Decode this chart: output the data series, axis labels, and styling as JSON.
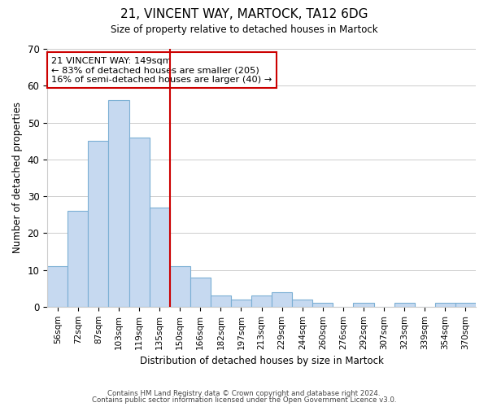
{
  "title": "21, VINCENT WAY, MARTOCK, TA12 6DG",
  "subtitle": "Size of property relative to detached houses in Martock",
  "xlabel": "Distribution of detached houses by size in Martock",
  "ylabel": "Number of detached properties",
  "bar_labels": [
    "56sqm",
    "72sqm",
    "87sqm",
    "103sqm",
    "119sqm",
    "135sqm",
    "150sqm",
    "166sqm",
    "182sqm",
    "197sqm",
    "213sqm",
    "229sqm",
    "244sqm",
    "260sqm",
    "276sqm",
    "292sqm",
    "307sqm",
    "323sqm",
    "339sqm",
    "354sqm",
    "370sqm"
  ],
  "bar_values": [
    11,
    26,
    45,
    56,
    46,
    27,
    11,
    8,
    3,
    2,
    3,
    4,
    2,
    1,
    0,
    1,
    0,
    1,
    0,
    1,
    1
  ],
  "bar_color": "#c6d9f0",
  "bar_edge_color": "#7bafd4",
  "highlight_line_color": "#cc0000",
  "highlight_line_index": 6,
  "ylim": [
    0,
    70
  ],
  "yticks": [
    0,
    10,
    20,
    30,
    40,
    50,
    60,
    70
  ],
  "annotation_text": "21 VINCENT WAY: 149sqm\n← 83% of detached houses are smaller (205)\n16% of semi-detached houses are larger (40) →",
  "annotation_box_color": "#ffffff",
  "annotation_box_edge": "#cc0000",
  "footer_line1": "Contains HM Land Registry data © Crown copyright and database right 2024.",
  "footer_line2": "Contains public sector information licensed under the Open Government Licence v3.0.",
  "background_color": "#ffffff",
  "grid_color": "#cccccc"
}
